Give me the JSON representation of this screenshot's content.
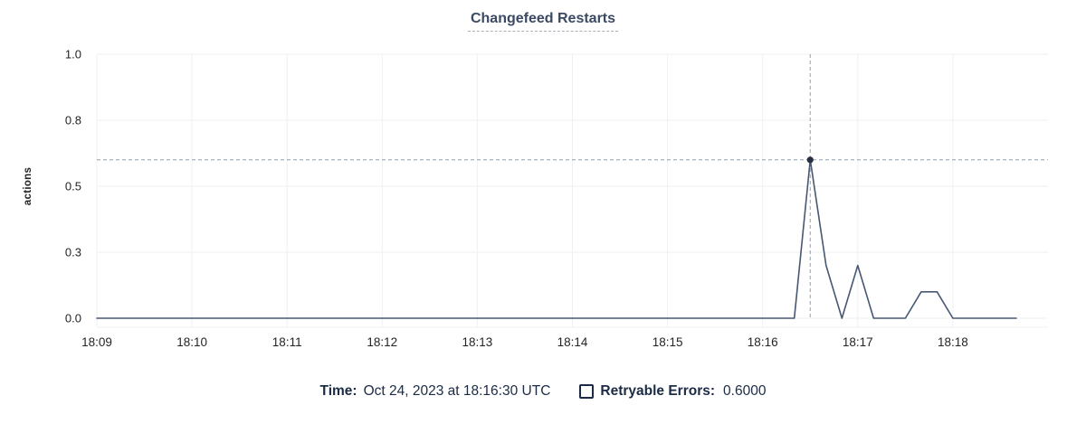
{
  "colors": {
    "title": "#3b4a63",
    "line": "#475872",
    "dot": "#26303e",
    "grid": "#eef0f2",
    "axis_bottom": "#f1f2f4",
    "guide": "#92a0ad",
    "axis_text": "#242425",
    "footer_text": "#1b2b45"
  },
  "chart_data": {
    "type": "line",
    "title": "Changefeed Restarts",
    "ylabel": "actions",
    "xlabel": "",
    "ylim": [
      0,
      1.0
    ],
    "x_domain": [
      0,
      600
    ],
    "x_unit": "seconds after 18:09:00",
    "grid": true,
    "legend_position": "bottom",
    "y_ticks": [
      {
        "value": 0.0,
        "label": "0.0"
      },
      {
        "value": 0.25,
        "label": "0.3"
      },
      {
        "value": 0.5,
        "label": "0.5"
      },
      {
        "value": 0.75,
        "label": "0.8"
      },
      {
        "value": 1.0,
        "label": "1.0"
      }
    ],
    "x_ticks": [
      {
        "t": 0,
        "label": "18:09"
      },
      {
        "t": 60,
        "label": "18:10"
      },
      {
        "t": 120,
        "label": "18:11"
      },
      {
        "t": 180,
        "label": "18:12"
      },
      {
        "t": 240,
        "label": "18:13"
      },
      {
        "t": 300,
        "label": "18:14"
      },
      {
        "t": 360,
        "label": "18:15"
      },
      {
        "t": 420,
        "label": "18:16"
      },
      {
        "t": 480,
        "label": "18:17"
      },
      {
        "t": 540,
        "label": "18:18"
      }
    ],
    "series": [
      {
        "name": "Retryable Errors",
        "color": "#475872",
        "points": [
          [
            0,
            0
          ],
          [
            440,
            0
          ],
          [
            450,
            0.6
          ],
          [
            460,
            0.2
          ],
          [
            470,
            0
          ],
          [
            480,
            0.2
          ],
          [
            490,
            0
          ],
          [
            500,
            0
          ],
          [
            510,
            0
          ],
          [
            520,
            0.1
          ],
          [
            530,
            0.1
          ],
          [
            540,
            0
          ],
          [
            550,
            0
          ],
          [
            560,
            0
          ],
          [
            570,
            0
          ],
          [
            580,
            0
          ]
        ]
      }
    ],
    "hover": {
      "t": 450,
      "value": 0.6,
      "time_label": "Oct 24, 2023 at 18:16:30 UTC",
      "value_label": "0.6000"
    }
  },
  "footer": {
    "time_label": "Time:",
    "time_value": "Oct 24, 2023 at 18:16:30 UTC",
    "legend": [
      {
        "label": "Retryable Errors:",
        "value": "0.6000",
        "checked": false
      }
    ]
  }
}
